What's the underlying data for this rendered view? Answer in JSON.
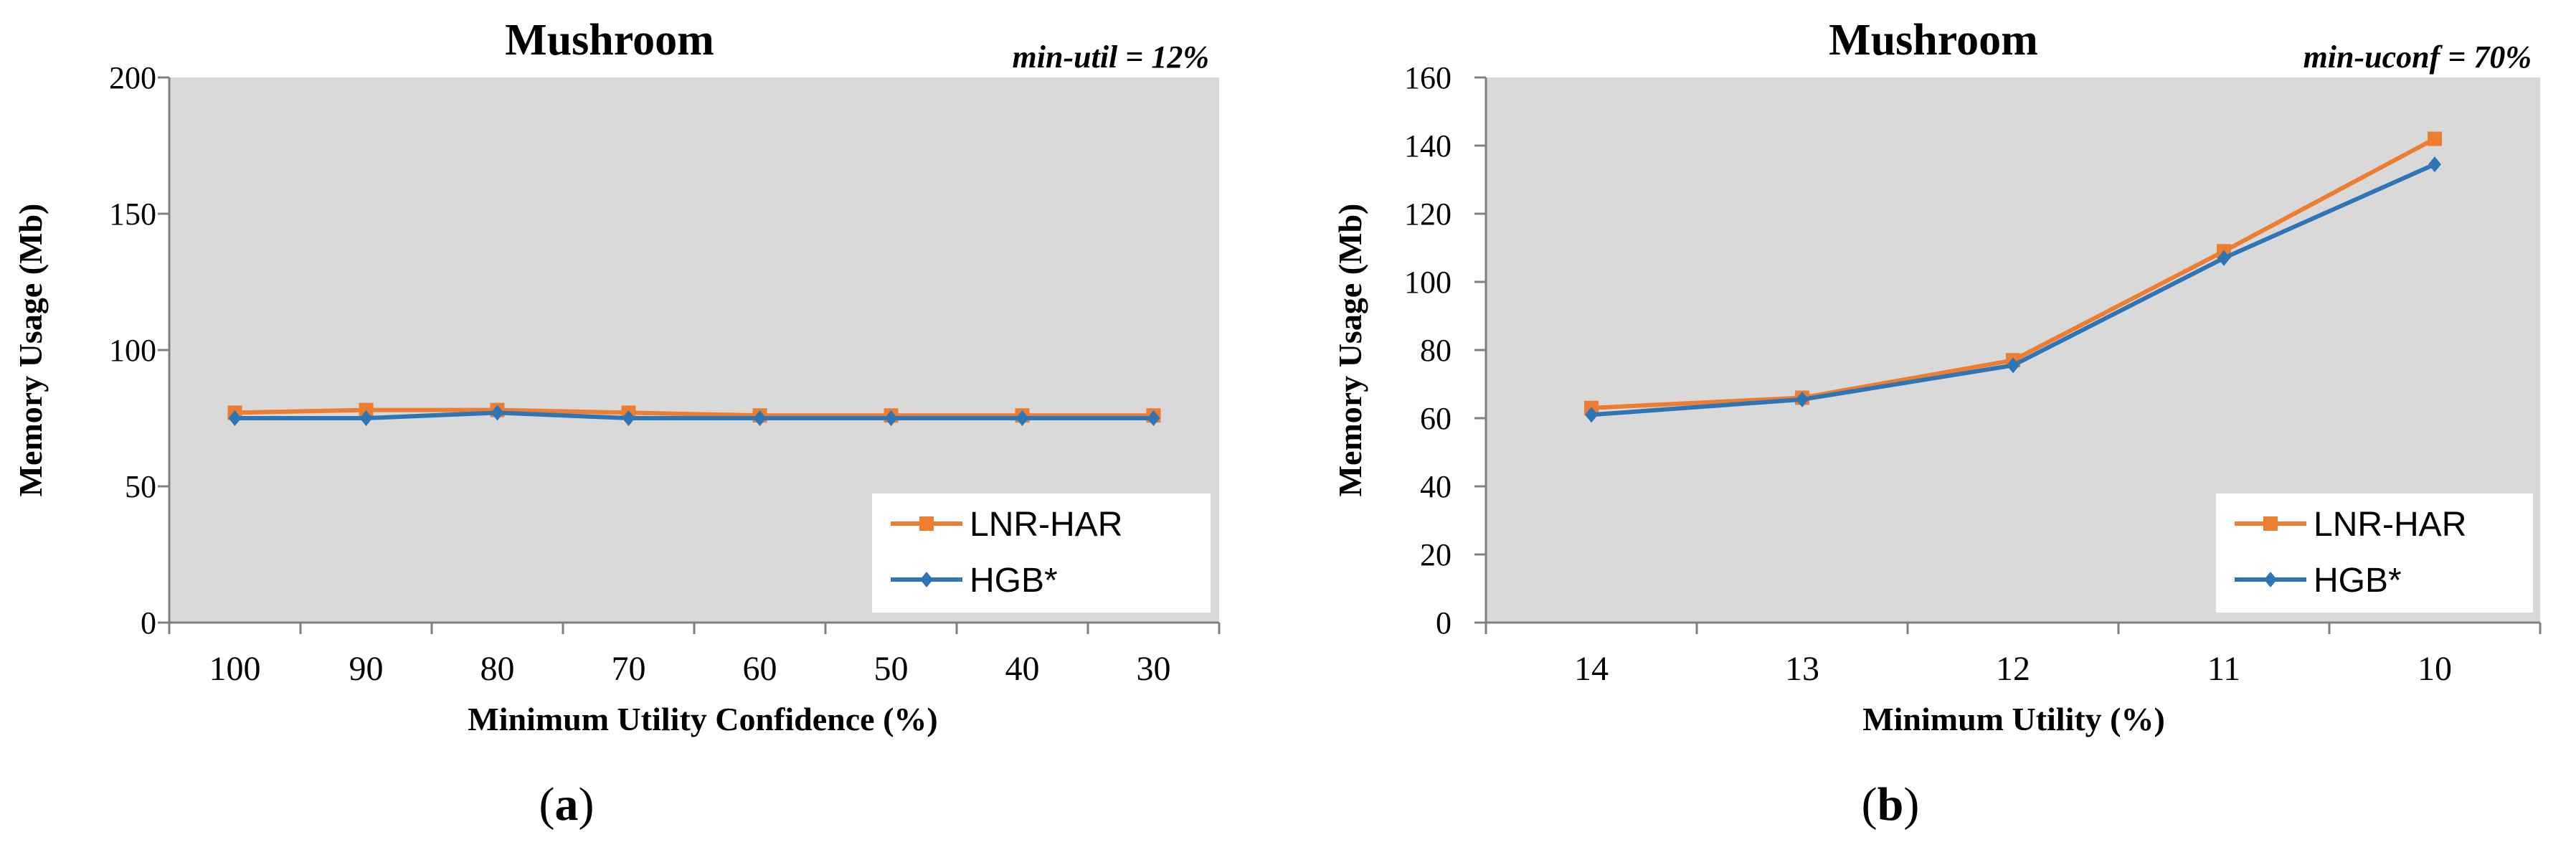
{
  "chart_data": [
    {
      "type": "line",
      "title": "Mushroom",
      "annotation": "min-util = 12%",
      "xlabel": "Minimum Utility Confidence (%)",
      "ylabel": "Memory Usage (Mb)",
      "categories": [
        "100",
        "90",
        "80",
        "70",
        "60",
        "50",
        "40",
        "30"
      ],
      "ylim": [
        0,
        200
      ],
      "yticks": [
        0,
        50,
        100,
        150,
        200
      ],
      "series": [
        {
          "name": "LNR-HAR",
          "color": "#ED7D31",
          "marker": "square",
          "values": [
            77,
            78,
            78,
            77,
            76,
            76,
            76,
            76
          ]
        },
        {
          "name": "HGB*",
          "color": "#2E75B6",
          "marker": "diamond",
          "values": [
            75,
            75,
            77,
            75,
            75,
            75,
            75,
            75
          ]
        }
      ],
      "legend": "bottom-right",
      "grid": false,
      "plot_background": "#D9D9D9",
      "panel_label": {
        "open": "(",
        "letter": "a",
        "close": ")"
      }
    },
    {
      "type": "line",
      "title": "Mushroom",
      "annotation": "min-uconf = 70%",
      "xlabel": "Minimum Utility (%)",
      "ylabel": "Memory Usage (Mb)",
      "categories": [
        "14",
        "13",
        "12",
        "11",
        "10"
      ],
      "ylim": [
        0,
        160
      ],
      "yticks": [
        0,
        20,
        40,
        60,
        80,
        100,
        120,
        140,
        160
      ],
      "series": [
        {
          "name": "LNR-HAR",
          "color": "#ED7D31",
          "marker": "square",
          "values": [
            63,
            66,
            77,
            109,
            142
          ]
        },
        {
          "name": "HGB*",
          "color": "#2E75B6",
          "marker": "diamond",
          "values": [
            61,
            65.5,
            75.5,
            107,
            134.5
          ]
        }
      ],
      "legend": "bottom-right",
      "grid": false,
      "plot_background": "#D9D9D9",
      "panel_label": {
        "open": "(",
        "letter": "b",
        "close": ")"
      }
    }
  ]
}
